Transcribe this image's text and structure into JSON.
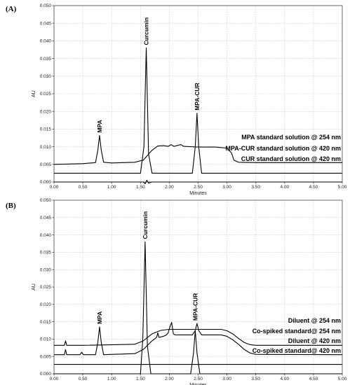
{
  "chart_data": [
    {
      "panel_label": "(A)",
      "type": "line",
      "xlabel": "Minutes",
      "ylabel": "AU",
      "xlim": [
        0,
        5
      ],
      "ylim": [
        0,
        0.05
      ],
      "x_ticks": [
        "0.00",
        "0.50",
        "1.00",
        "1.50",
        "2.00",
        "2.50",
        "3.00",
        "3.50",
        "4.00",
        "4.50",
        "5.00"
      ],
      "y_ticks": [
        "0.000",
        "0.005",
        "0.010",
        "0.015",
        "0.020",
        "0.025",
        "0.030",
        "0.035",
        "0.040",
        "0.045",
        "0.050"
      ],
      "grid": true,
      "series": [
        {
          "name": "MPA standard solution @ 254 nm",
          "x": [
            0,
            0.5,
            0.72,
            0.76,
            0.79,
            0.82,
            0.86,
            1.0,
            1.4,
            1.55,
            1.7,
            1.8,
            1.9,
            1.98,
            2.03,
            2.08,
            2.15,
            2.2,
            2.25,
            2.5,
            2.8,
            3.0,
            3.08,
            3.12,
            3.2,
            3.5,
            4.0,
            5.0
          ],
          "y": [
            0.005,
            0.0052,
            0.0055,
            0.009,
            0.0132,
            0.009,
            0.0056,
            0.0054,
            0.0056,
            0.0062,
            0.009,
            0.0102,
            0.0103,
            0.0101,
            0.0106,
            0.0101,
            0.0104,
            0.0106,
            0.0101,
            0.0099,
            0.0099,
            0.0096,
            0.0082,
            0.0062,
            0.0056,
            0.0055,
            0.0055,
            0.0055
          ]
        },
        {
          "name": "MPA-CUR standard solution @ 420 nm",
          "x": [
            0,
            1.5,
            1.56,
            1.6,
            1.64,
            1.7,
            2.4,
            2.45,
            2.48,
            2.51,
            2.56,
            5.0
          ],
          "y": [
            0.0025,
            0.0025,
            0.01,
            0.038,
            0.008,
            0.0025,
            0.0025,
            0.01,
            0.0195,
            0.01,
            0.0025,
            0.0025
          ]
        },
        {
          "name": "CUR standard solution @ 420 nm",
          "x": [
            0,
            1.55,
            1.58,
            1.61,
            1.64,
            1.7,
            5.0
          ],
          "y": [
            0.0,
            0.0,
            -0.0005,
            0.0005,
            -0.0003,
            0.0,
            0.0
          ]
        }
      ],
      "annotations": [
        {
          "text": "MPA",
          "x": 0.79,
          "y": 0.0132
        },
        {
          "text": "Curcumin",
          "x": 1.6,
          "y": 0.038
        },
        {
          "text": "MPA-CUR",
          "x": 2.48,
          "y": 0.0195
        }
      ]
    },
    {
      "panel_label": "(B)",
      "type": "line",
      "xlabel": "Minutes",
      "ylabel": "AU",
      "xlim": [
        0,
        5
      ],
      "ylim": [
        0,
        0.05
      ],
      "x_ticks": [
        "0.00",
        "0.50",
        "1.00",
        "1.50",
        "2.00",
        "2.50",
        "3.00",
        "3.50",
        "4.00",
        "4.50",
        "5.00"
      ],
      "y_ticks": [
        "0.000",
        "0.005",
        "0.010",
        "0.015",
        "0.020",
        "0.025",
        "0.030",
        "0.035",
        "0.040",
        "0.045",
        "0.050"
      ],
      "grid": true,
      "series": [
        {
          "name": "Diluent @ 254 nm",
          "x": [
            0,
            0.18,
            0.2,
            0.22,
            0.5,
            1.4,
            1.55,
            1.7,
            1.85,
            2.0,
            2.1,
            2.5,
            2.9,
            3.0,
            3.1,
            3.2,
            3.3,
            3.4,
            3.5,
            4.0,
            5.0
          ],
          "y": [
            0.0082,
            0.0082,
            0.0095,
            0.0082,
            0.0082,
            0.0085,
            0.0095,
            0.0115,
            0.0125,
            0.0128,
            0.0128,
            0.0128,
            0.0128,
            0.0124,
            0.0115,
            0.0102,
            0.009,
            0.0084,
            0.0082,
            0.0082,
            0.0082
          ]
        },
        {
          "name": "Co-spiked standard@ 254 nm",
          "x": [
            0,
            0.18,
            0.2,
            0.22,
            0.45,
            0.48,
            0.51,
            0.72,
            0.76,
            0.79,
            0.82,
            0.86,
            1.4,
            1.55,
            1.7,
            1.78,
            1.8,
            1.82,
            1.9,
            1.95,
            1.98,
            2.01,
            2.04,
            2.07,
            2.1,
            2.4,
            2.45,
            2.48,
            2.51,
            2.56,
            2.9,
            3.0,
            3.1,
            3.2,
            3.3,
            3.4,
            3.5,
            5.0
          ],
          "y": [
            0.0055,
            0.0055,
            0.007,
            0.0055,
            0.0055,
            0.0062,
            0.0055,
            0.0055,
            0.009,
            0.0135,
            0.009,
            0.0055,
            0.0058,
            0.007,
            0.0095,
            0.0105,
            0.0118,
            0.0105,
            0.0108,
            0.0112,
            0.0118,
            0.0135,
            0.0148,
            0.0115,
            0.0112,
            0.0112,
            0.0125,
            0.0145,
            0.0125,
            0.0112,
            0.0112,
            0.0108,
            0.0098,
            0.0085,
            0.007,
            0.006,
            0.0056,
            0.0055
          ]
        },
        {
          "name": "Diluent @ 420 nm",
          "x": [
            0,
            5.0
          ],
          "y": [
            0.0027,
            0.0027
          ]
        },
        {
          "name": "Co-spiked standard@ 420 nm",
          "x": [
            0,
            1.5,
            1.54,
            1.58,
            1.62,
            1.68,
            2.37,
            2.42,
            2.45,
            2.48,
            2.53,
            5.0
          ],
          "y": [
            0.0,
            0.0,
            0.01,
            0.038,
            0.008,
            0.0,
            0.0,
            0.006,
            0.0125,
            0.006,
            0.0,
            0.0
          ]
        }
      ],
      "annotations": [
        {
          "text": "MPA",
          "x": 0.79,
          "y": 0.0135
        },
        {
          "text": "Curcumin",
          "x": 1.58,
          "y": 0.038
        },
        {
          "text": "MPA-CUR",
          "x": 2.45,
          "y": 0.0145
        }
      ]
    }
  ]
}
